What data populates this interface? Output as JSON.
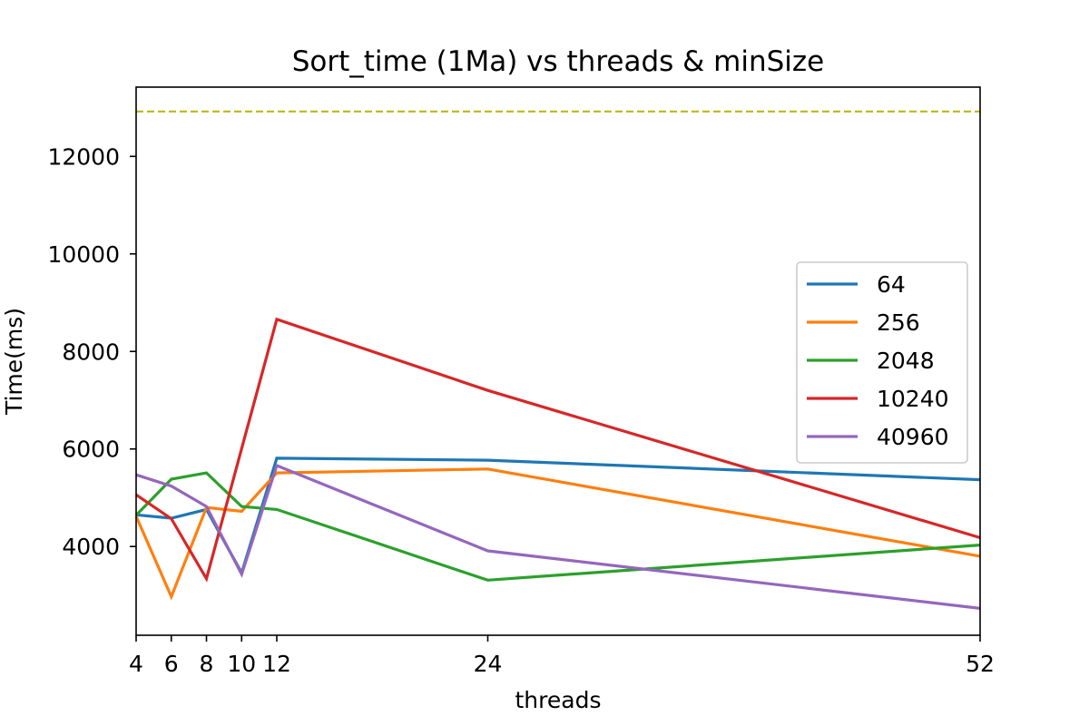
{
  "chart_data": {
    "type": "line",
    "title": "Sort_time (1Ma) vs threads & minSize",
    "xlabel": "threads",
    "ylabel": "Time(ms)",
    "x": [
      4,
      6,
      8,
      10,
      12,
      24,
      52
    ],
    "xticks": [
      "4",
      "6",
      "8",
      "10",
      "12",
      "24",
      "52"
    ],
    "yticks": [
      "4000",
      "6000",
      "8000",
      "10000",
      "12000"
    ],
    "xlim": [
      4,
      52
    ],
    "ylim": [
      2180,
      13420
    ],
    "grid": false,
    "legend_position": "center-right",
    "series": [
      {
        "name": "64",
        "color": "#1f77b4",
        "values": [
          4650,
          4580,
          4760,
          3460,
          5810,
          5770,
          5370
        ]
      },
      {
        "name": "256",
        "color": "#ff7f0e",
        "values": [
          4620,
          2970,
          4800,
          4720,
          5510,
          5590,
          3800
        ]
      },
      {
        "name": "2048",
        "color": "#2ca02c",
        "values": [
          4640,
          5380,
          5510,
          4820,
          4760,
          3310,
          4030
        ]
      },
      {
        "name": "10240",
        "color": "#d62728",
        "values": [
          5060,
          4570,
          3340,
          6010,
          8660,
          7200,
          4180
        ]
      },
      {
        "name": "40960",
        "color": "#9467bd",
        "values": [
          5470,
          5240,
          4820,
          3430,
          5660,
          3910,
          2730
        ]
      }
    ],
    "reference_line": {
      "value": 12920,
      "color": "#bcbd22",
      "style": "dashed"
    }
  }
}
